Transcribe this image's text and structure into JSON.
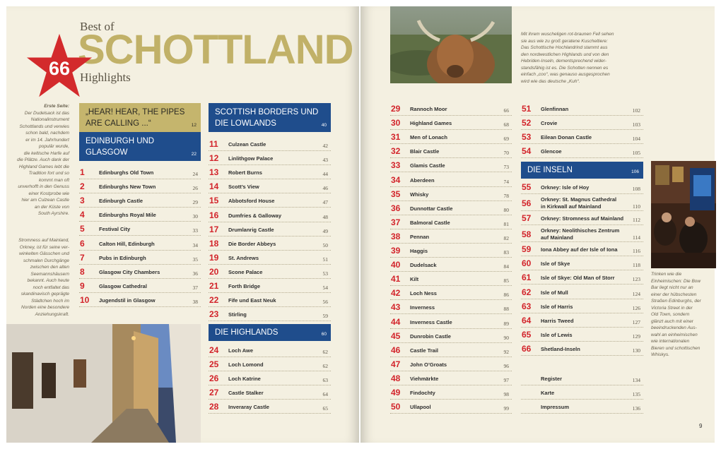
{
  "title": {
    "best_of": "Best of",
    "main": "SCHOTTLAND",
    "sub": "Highlights"
  },
  "badge": {
    "number": "66"
  },
  "captions": {
    "left_top": {
      "heading": "Erste Seite:",
      "lines": [
        "Der Dudelsack ist das",
        "Nationalinstrument",
        "Schottlands und verwies",
        "schon bald, nachdem",
        "er im 14. Jahrhundert",
        "populär wurde,",
        "die keltische Harfe auf",
        "die Plätze. Auch dank der",
        "Highland Games lebt die",
        "Tradition fort und so",
        "kommt man oft",
        "unverhofft in den Genuss",
        "einer Kostprobe wie",
        "hier am Culzean Castle",
        "an der Küste von",
        "South Ayrshire."
      ]
    },
    "left_bottom": {
      "lines": [
        "Stromness auf Mainland,",
        "Orkney, ist für seine ver-",
        "winkelten Gässchen und",
        "schmalen Durchgänge",
        "zwischen den alten",
        "Seemannshäusern",
        "bekannt. Auch heute",
        "noch entfaltet das",
        "skandinavisch geprägte",
        "Städtchen hoch im",
        "Norden eine besondere",
        "Anziehungskraft."
      ]
    },
    "right_top": {
      "lines": [
        "Mit ihrem wuscheligen rot-braunen Fell sehen",
        "sie aus wie zu groß geratene Kuscheltiere:",
        "Das Schottische Hochlandrind stammt aus",
        "den nordwestlichen Highlands und von den",
        "Hebriden-Inseln, dementsprechend wider-",
        "standsfähig ist es. Die Schotten nennen es",
        "einfach „coo“, was genauso ausgesprochen",
        "wird wie das deutsche „Kuh“."
      ]
    },
    "right_bottom": {
      "lines": [
        "Trinken wie die",
        "Einheimischen: Die Bow",
        "Bar liegt nicht nur an",
        "einer der hübschesten",
        "Straßen Edinburghs, der",
        "Victoria Street in der",
        "Old Town, sondern",
        "glänzt auch mit einer",
        "beeindruckenden Aus-",
        "wahl an einheimischen",
        "wie internationalen",
        "Bieren und schottischen",
        "Whiskys."
      ]
    }
  },
  "sections": [
    {
      "title_lines": [
        "„HEAR! HEAR, THE PIPES",
        "ARE CALLING ...“"
      ],
      "page": "12",
      "style": "tan"
    },
    {
      "title_lines": [
        "EDINBURGH UND",
        "GLASGOW"
      ],
      "page": "22",
      "style": "blue"
    },
    {
      "title_lines": [
        "SCOTTISH BORDERS UND",
        "DIE LOWLANDS"
      ],
      "page": "40",
      "style": "blue"
    },
    {
      "title_lines": [
        "DIE HIGHLANDS"
      ],
      "page": "60",
      "style": "blue"
    },
    {
      "title_lines": [
        "DIE INSELN"
      ],
      "page": "106",
      "style": "blue"
    }
  ],
  "entries": {
    "edinburgh": [
      {
        "num": "1",
        "label": "Edinburghs Old Town",
        "page": "24"
      },
      {
        "num": "2",
        "label": "Edinburghs New Town",
        "page": "26"
      },
      {
        "num": "3",
        "label": "Edinburgh Castle",
        "page": "29"
      },
      {
        "num": "4",
        "label": "Edinburghs Royal Mile",
        "page": "30"
      },
      {
        "num": "5",
        "label": "Festival City",
        "page": "33"
      },
      {
        "num": "6",
        "label": "Calton Hill, Edinburgh",
        "page": "34"
      },
      {
        "num": "7",
        "label": "Pubs in Edinburgh",
        "page": "35"
      },
      {
        "num": "8",
        "label": "Glasgow City Chambers",
        "page": "36"
      },
      {
        "num": "9",
        "label": "Glasgow Cathedral",
        "page": "37"
      },
      {
        "num": "10",
        "label": "Jugendstil in Glasgow",
        "page": "38"
      }
    ],
    "borders": [
      {
        "num": "11",
        "label": "Culzean Castle",
        "page": "42"
      },
      {
        "num": "12",
        "label": "Linlithgow Palace",
        "page": "43"
      },
      {
        "num": "13",
        "label": "Robert Burns",
        "page": "44"
      },
      {
        "num": "14",
        "label": "Scott’s View",
        "page": "46"
      },
      {
        "num": "15",
        "label": "Abbotsford House",
        "page": "47"
      },
      {
        "num": "16",
        "label": "Dumfries & Galloway",
        "page": "48"
      },
      {
        "num": "17",
        "label": "Drumlanrig Castle",
        "page": "49"
      },
      {
        "num": "18",
        "label": "Die Border Abbeys",
        "page": "50"
      },
      {
        "num": "19",
        "label": "St. Andrews",
        "page": "51"
      },
      {
        "num": "20",
        "label": "Scone Palace",
        "page": "53"
      },
      {
        "num": "21",
        "label": "Forth Bridge",
        "page": "54"
      },
      {
        "num": "22",
        "label": "Fife und East Neuk",
        "page": "56"
      },
      {
        "num": "23",
        "label": "Stirling",
        "page": "59"
      }
    ],
    "highlands_a": [
      {
        "num": "24",
        "label": "Loch Awe",
        "page": "62"
      },
      {
        "num": "25",
        "label": "Loch Lomond",
        "page": "62"
      },
      {
        "num": "26",
        "label": "Loch Katrine",
        "page": "63"
      },
      {
        "num": "27",
        "label": "Castle Stalker",
        "page": "64"
      },
      {
        "num": "28",
        "label": "Inveraray Castle",
        "page": "65"
      }
    ],
    "highlands_b": [
      {
        "num": "29",
        "label": "Rannoch Moor",
        "page": "66"
      },
      {
        "num": "30",
        "label": "Highland Games",
        "page": "68"
      },
      {
        "num": "31",
        "label": "Men of Lonach",
        "page": "69"
      },
      {
        "num": "32",
        "label": "Blair Castle",
        "page": "70"
      },
      {
        "num": "33",
        "label": "Glamis Castle",
        "page": "73"
      },
      {
        "num": "34",
        "label": "Aberdeen",
        "page": "74"
      },
      {
        "num": "35",
        "label": "Whisky",
        "page": "78"
      },
      {
        "num": "36",
        "label": "Dunnottar Castle",
        "page": "80"
      },
      {
        "num": "37",
        "label": "Balmoral Castle",
        "page": "81"
      },
      {
        "num": "38",
        "label": "Pennan",
        "page": "82"
      },
      {
        "num": "39",
        "label": "Haggis",
        "page": "83"
      },
      {
        "num": "40",
        "label": "Dudelsack",
        "page": "84"
      },
      {
        "num": "41",
        "label": "Kilt",
        "page": "85"
      },
      {
        "num": "42",
        "label": "Loch Ness",
        "page": "86"
      },
      {
        "num": "43",
        "label": "Inverness",
        "page": "88"
      },
      {
        "num": "44",
        "label": "Inverness Castle",
        "page": "89"
      },
      {
        "num": "45",
        "label": "Dunrobin Castle",
        "page": "90"
      },
      {
        "num": "46",
        "label": "Castle Trail",
        "page": "92"
      },
      {
        "num": "47",
        "label": "John O’Groats",
        "page": "96"
      },
      {
        "num": "48",
        "label": "Viehmärkte",
        "page": "97"
      },
      {
        "num": "49",
        "label": "Findochty",
        "page": "98"
      },
      {
        "num": "50",
        "label": "Ullapool",
        "page": "99"
      }
    ],
    "highlands_c": [
      {
        "num": "51",
        "label": "Glenfinnan",
        "page": "102"
      },
      {
        "num": "52",
        "label": "Crovie",
        "page": "103"
      },
      {
        "num": "53",
        "label": "Eilean Donan Castle",
        "page": "104"
      },
      {
        "num": "54",
        "label": "Glencoe",
        "page": "105"
      }
    ],
    "inseln": [
      {
        "num": "55",
        "label": "Orkney: Isle of Hoy",
        "page": "108"
      },
      {
        "num": "56",
        "label": "Orkney: St. Magnus Cathedral",
        "label2": "in Kirkwall auf Mainland",
        "page": "110"
      },
      {
        "num": "57",
        "label": "Orkney: Stromness auf Mainland",
        "page": "112"
      },
      {
        "num": "58",
        "label": "Orkney: Neolithisches Zentrum",
        "label2": "auf Mainland",
        "page": "114"
      },
      {
        "num": "59",
        "label": "Iona Abbey auf der Isle of Iona",
        "page": "116"
      },
      {
        "num": "60",
        "label": "Isle of Skye",
        "page": "118"
      },
      {
        "num": "61",
        "label": "Isle of Skye: Old Man of Storr",
        "page": "123"
      },
      {
        "num": "62",
        "label": "Isle of Mull",
        "page": "124"
      },
      {
        "num": "63",
        "label": "Isle of Harris",
        "page": "126"
      },
      {
        "num": "64",
        "label": "Harris Tweed",
        "page": "127"
      },
      {
        "num": "65",
        "label": "Isle of Lewis",
        "page": "129"
      },
      {
        "num": "66",
        "label": "Shetland-Inseln",
        "page": "130"
      }
    ],
    "extra": [
      {
        "num": "",
        "label": "Register",
        "page": "134"
      },
      {
        "num": "",
        "label": "Karte",
        "page": "135"
      },
      {
        "num": "",
        "label": "Impressum",
        "page": "136"
      }
    ]
  },
  "page_number": "9"
}
